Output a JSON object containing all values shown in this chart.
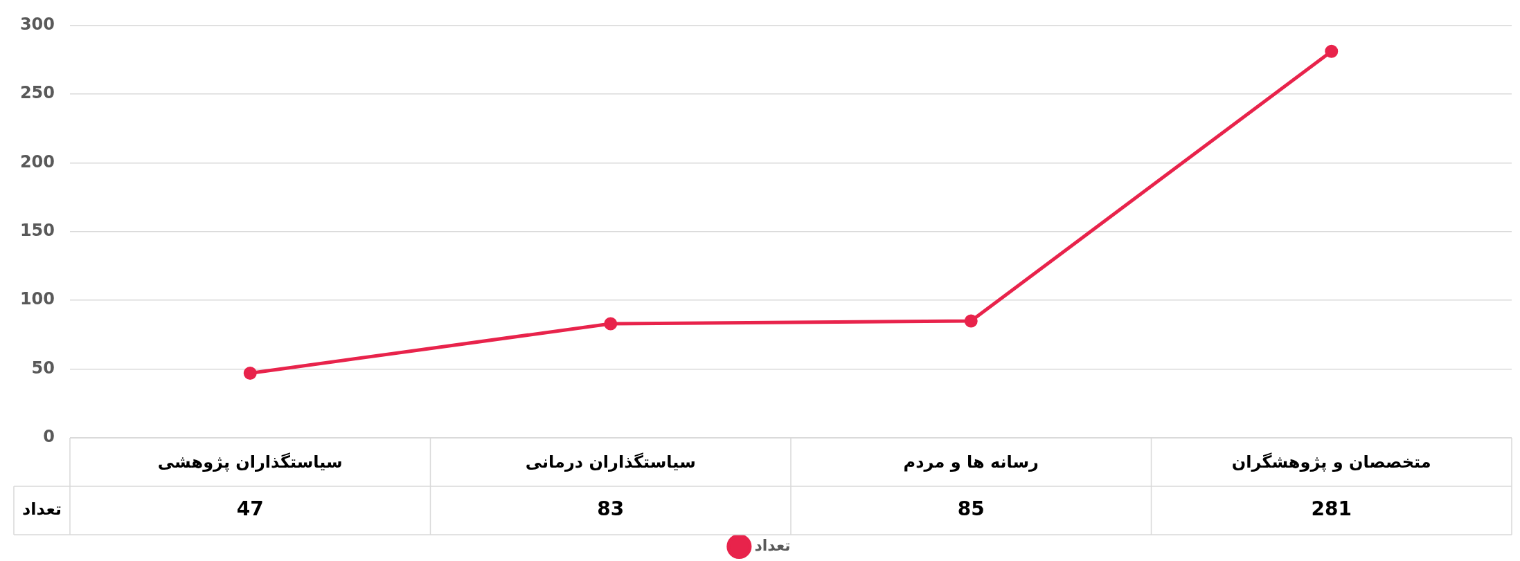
{
  "chart_data": {
    "type": "line",
    "categories": [
      "سیاستگذاران پژوهشی",
      "سیاستگذاران درمانی",
      "رسانه ها و مردم",
      "متخصصان و پژوهشگران"
    ],
    "series": [
      {
        "name": "تعداد",
        "color": "#e8234b",
        "values": [
          47,
          83,
          85,
          281
        ]
      }
    ],
    "ylim": [
      0,
      300
    ],
    "yticks": [
      0,
      50,
      100,
      150,
      200,
      250,
      300
    ],
    "grid": "y",
    "legend": "bottom",
    "marker": "circle",
    "line_style": "solid",
    "data_labels": true
  }
}
